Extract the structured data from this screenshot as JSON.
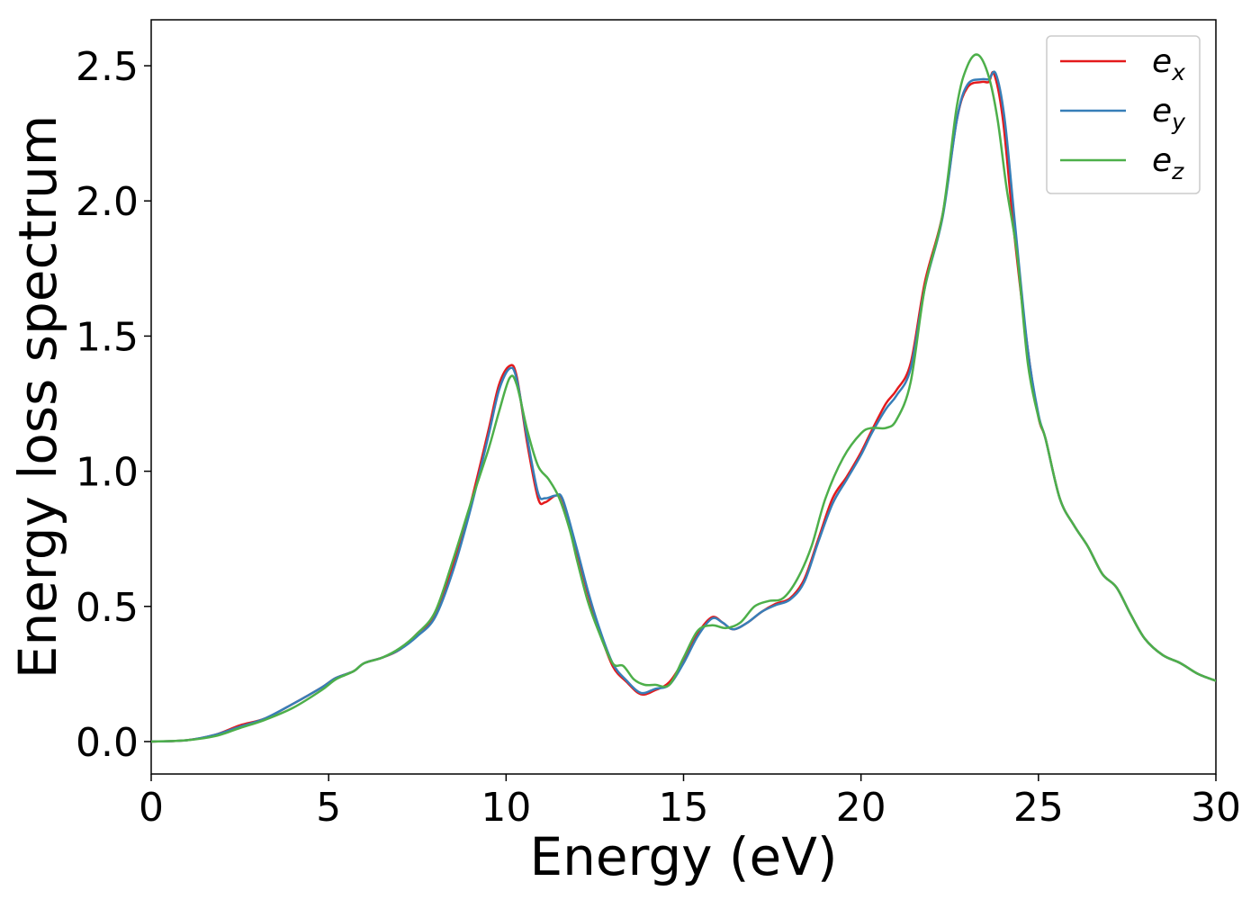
{
  "chart_data": {
    "type": "line",
    "title": "",
    "xlabel": "Energy (eV)",
    "ylabel": "Energy loss spectrum",
    "xlim": [
      0,
      30
    ],
    "ylim": [
      -0.12,
      2.67
    ],
    "xticks": [
      0,
      5,
      10,
      15,
      20,
      25,
      30
    ],
    "yticks": [
      0.0,
      0.5,
      1.0,
      1.5,
      2.0,
      2.5
    ],
    "xtick_labels": [
      "0",
      "5",
      "10",
      "15",
      "20",
      "25",
      "30"
    ],
    "ytick_labels": [
      "0.0",
      "0.5",
      "1.0",
      "1.5",
      "2.0",
      "2.5"
    ],
    "grid": false,
    "legend_position": "top-right",
    "series": [
      {
        "name": "e",
        "subscript": "x",
        "color": "#e41a1c",
        "points": [
          [
            0,
            0
          ],
          [
            1,
            0.005
          ],
          [
            1.8,
            0.025
          ],
          [
            2.5,
            0.06
          ],
          [
            3.2,
            0.085
          ],
          [
            4,
            0.14
          ],
          [
            4.8,
            0.2
          ],
          [
            5.2,
            0.235
          ],
          [
            5.7,
            0.26
          ],
          [
            6,
            0.29
          ],
          [
            6.5,
            0.31
          ],
          [
            7,
            0.34
          ],
          [
            7.5,
            0.4
          ],
          [
            8,
            0.47
          ],
          [
            8.5,
            0.65
          ],
          [
            9,
            0.88
          ],
          [
            9.5,
            1.15
          ],
          [
            9.8,
            1.32
          ],
          [
            10.1,
            1.39
          ],
          [
            10.3,
            1.35
          ],
          [
            10.6,
            1.1
          ],
          [
            10.9,
            0.9
          ],
          [
            11.1,
            0.885
          ],
          [
            11.4,
            0.91
          ],
          [
            11.6,
            0.89
          ],
          [
            12,
            0.7
          ],
          [
            12.3,
            0.55
          ],
          [
            12.6,
            0.42
          ],
          [
            13,
            0.28
          ],
          [
            13.4,
            0.22
          ],
          [
            13.8,
            0.175
          ],
          [
            14.2,
            0.19
          ],
          [
            14.6,
            0.22
          ],
          [
            15,
            0.3
          ],
          [
            15.4,
            0.4
          ],
          [
            15.8,
            0.46
          ],
          [
            16.1,
            0.44
          ],
          [
            16.4,
            0.415
          ],
          [
            16.8,
            0.44
          ],
          [
            17.2,
            0.48
          ],
          [
            17.6,
            0.51
          ],
          [
            18,
            0.53
          ],
          [
            18.4,
            0.6
          ],
          [
            18.8,
            0.75
          ],
          [
            19.2,
            0.9
          ],
          [
            19.6,
            0.98
          ],
          [
            20,
            1.07
          ],
          [
            20.3,
            1.15
          ],
          [
            20.7,
            1.25
          ],
          [
            21,
            1.3
          ],
          [
            21.4,
            1.4
          ],
          [
            21.8,
            1.7
          ],
          [
            22.3,
            1.95
          ],
          [
            22.7,
            2.3
          ],
          [
            23,
            2.42
          ],
          [
            23.4,
            2.44
          ],
          [
            23.6,
            2.44
          ],
          [
            23.75,
            2.47
          ],
          [
            24,
            2.3
          ],
          [
            24.3,
            1.9
          ],
          [
            24.7,
            1.45
          ],
          [
            25,
            1.2
          ],
          [
            25.2,
            1.12
          ],
          [
            25.6,
            0.9
          ],
          [
            26,
            0.8
          ],
          [
            26.4,
            0.72
          ],
          [
            26.8,
            0.62
          ],
          [
            27.2,
            0.57
          ],
          [
            27.6,
            0.47
          ],
          [
            28,
            0.38
          ],
          [
            28.5,
            0.32
          ],
          [
            29,
            0.29
          ],
          [
            29.5,
            0.25
          ],
          [
            30,
            0.225
          ]
        ]
      },
      {
        "name": "e",
        "subscript": "y",
        "color": "#377eb8",
        "points": [
          [
            0,
            0
          ],
          [
            1,
            0.005
          ],
          [
            1.8,
            0.025
          ],
          [
            2.5,
            0.055
          ],
          [
            3.2,
            0.085
          ],
          [
            4,
            0.14
          ],
          [
            4.8,
            0.2
          ],
          [
            5.2,
            0.235
          ],
          [
            5.7,
            0.26
          ],
          [
            6,
            0.29
          ],
          [
            6.5,
            0.31
          ],
          [
            7,
            0.34
          ],
          [
            7.5,
            0.39
          ],
          [
            8,
            0.46
          ],
          [
            8.5,
            0.63
          ],
          [
            9,
            0.86
          ],
          [
            9.5,
            1.13
          ],
          [
            9.8,
            1.3
          ],
          [
            10.1,
            1.38
          ],
          [
            10.3,
            1.34
          ],
          [
            10.6,
            1.12
          ],
          [
            10.9,
            0.92
          ],
          [
            11.1,
            0.9
          ],
          [
            11.4,
            0.91
          ],
          [
            11.6,
            0.895
          ],
          [
            12,
            0.71
          ],
          [
            12.3,
            0.56
          ],
          [
            12.6,
            0.43
          ],
          [
            13,
            0.29
          ],
          [
            13.4,
            0.225
          ],
          [
            13.8,
            0.18
          ],
          [
            14.2,
            0.195
          ],
          [
            14.6,
            0.21
          ],
          [
            15,
            0.29
          ],
          [
            15.4,
            0.39
          ],
          [
            15.8,
            0.455
          ],
          [
            16.1,
            0.44
          ],
          [
            16.4,
            0.415
          ],
          [
            16.8,
            0.44
          ],
          [
            17.2,
            0.48
          ],
          [
            17.6,
            0.505
          ],
          [
            18,
            0.525
          ],
          [
            18.4,
            0.59
          ],
          [
            18.8,
            0.74
          ],
          [
            19.2,
            0.88
          ],
          [
            19.6,
            0.97
          ],
          [
            20,
            1.06
          ],
          [
            20.3,
            1.14
          ],
          [
            20.7,
            1.23
          ],
          [
            21,
            1.28
          ],
          [
            21.4,
            1.38
          ],
          [
            21.8,
            1.68
          ],
          [
            22.3,
            1.94
          ],
          [
            22.7,
            2.3
          ],
          [
            23,
            2.43
          ],
          [
            23.4,
            2.45
          ],
          [
            23.6,
            2.45
          ],
          [
            23.8,
            2.47
          ],
          [
            24.05,
            2.3
          ],
          [
            24.35,
            1.9
          ],
          [
            24.7,
            1.45
          ],
          [
            25,
            1.21
          ],
          [
            25.2,
            1.12
          ],
          [
            25.6,
            0.9
          ],
          [
            26,
            0.8
          ],
          [
            26.4,
            0.72
          ],
          [
            26.8,
            0.62
          ],
          [
            27.2,
            0.57
          ],
          [
            27.6,
            0.47
          ],
          [
            28,
            0.38
          ],
          [
            28.5,
            0.32
          ],
          [
            29,
            0.29
          ],
          [
            29.5,
            0.25
          ],
          [
            30,
            0.225
          ]
        ]
      },
      {
        "name": "e",
        "subscript": "z",
        "color": "#4daf4a",
        "points": [
          [
            0,
            0
          ],
          [
            1,
            0.005
          ],
          [
            1.8,
            0.02
          ],
          [
            2.5,
            0.05
          ],
          [
            3.2,
            0.08
          ],
          [
            4,
            0.125
          ],
          [
            4.8,
            0.19
          ],
          [
            5.2,
            0.23
          ],
          [
            5.7,
            0.26
          ],
          [
            6,
            0.29
          ],
          [
            6.5,
            0.31
          ],
          [
            7,
            0.345
          ],
          [
            7.5,
            0.4
          ],
          [
            8,
            0.48
          ],
          [
            8.5,
            0.67
          ],
          [
            9,
            0.88
          ],
          [
            9.5,
            1.08
          ],
          [
            9.8,
            1.22
          ],
          [
            10.1,
            1.345
          ],
          [
            10.3,
            1.32
          ],
          [
            10.6,
            1.15
          ],
          [
            10.9,
            1.02
          ],
          [
            11.2,
            0.97
          ],
          [
            11.5,
            0.9
          ],
          [
            11.8,
            0.78
          ],
          [
            12,
            0.67
          ],
          [
            12.3,
            0.52
          ],
          [
            12.6,
            0.41
          ],
          [
            13,
            0.29
          ],
          [
            13.3,
            0.28
          ],
          [
            13.6,
            0.23
          ],
          [
            13.9,
            0.21
          ],
          [
            14.2,
            0.21
          ],
          [
            14.6,
            0.21
          ],
          [
            15,
            0.31
          ],
          [
            15.4,
            0.41
          ],
          [
            15.8,
            0.43
          ],
          [
            16.2,
            0.42
          ],
          [
            16.6,
            0.44
          ],
          [
            17,
            0.5
          ],
          [
            17.4,
            0.52
          ],
          [
            17.8,
            0.53
          ],
          [
            18.2,
            0.6
          ],
          [
            18.6,
            0.72
          ],
          [
            19,
            0.9
          ],
          [
            19.5,
            1.05
          ],
          [
            20,
            1.14
          ],
          [
            20.3,
            1.16
          ],
          [
            20.7,
            1.16
          ],
          [
            21,
            1.19
          ],
          [
            21.4,
            1.33
          ],
          [
            21.8,
            1.68
          ],
          [
            22.3,
            1.95
          ],
          [
            22.7,
            2.35
          ],
          [
            23,
            2.5
          ],
          [
            23.3,
            2.54
          ],
          [
            23.6,
            2.46
          ],
          [
            23.85,
            2.3
          ],
          [
            24.1,
            2.05
          ],
          [
            24.4,
            1.8
          ],
          [
            24.7,
            1.4
          ],
          [
            25,
            1.2
          ],
          [
            25.2,
            1.12
          ],
          [
            25.6,
            0.9
          ],
          [
            26,
            0.8
          ],
          [
            26.4,
            0.72
          ],
          [
            26.8,
            0.62
          ],
          [
            27.2,
            0.57
          ],
          [
            27.6,
            0.47
          ],
          [
            28,
            0.38
          ],
          [
            28.5,
            0.32
          ],
          [
            29,
            0.29
          ],
          [
            29.5,
            0.25
          ],
          [
            30,
            0.225
          ]
        ]
      }
    ]
  }
}
